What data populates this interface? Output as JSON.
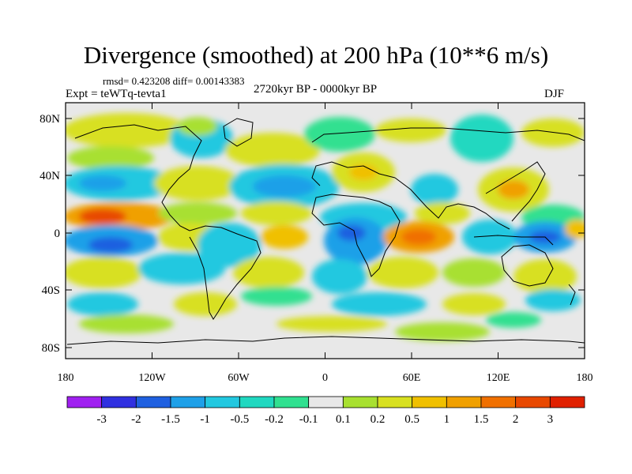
{
  "title": "Divergence (smoothed) at 200 hPa (10**6 m/s)",
  "stats": "rmsd= 0.423208  diff= 0.00143383",
  "experiment": "Expt = teWTq-tevta1",
  "period": "2720kyr BP - 0000kyr BP",
  "season": "DJF",
  "lat_labels": [
    "80N",
    "40N",
    "0",
    "40S",
    "80S"
  ],
  "lon_labels": [
    "180",
    "120W",
    "60W",
    "0",
    "60E",
    "120E",
    "180"
  ],
  "colorbar": {
    "colors": [
      "#a020f0",
      "#3030e0",
      "#1f60e0",
      "#1ea0e8",
      "#22c8e0",
      "#20d8c0",
      "#30e090",
      "#e8e8e8",
      "#a8e030",
      "#d8e020",
      "#f0c000",
      "#f0a000",
      "#f07000",
      "#e84800",
      "#e02000"
    ],
    "labels": [
      "-3",
      "-2",
      "-1.5",
      "-1",
      "-0.5",
      "-0.2",
      "-0.1",
      "0.1",
      "0.2",
      "0.5",
      "1",
      "1.5",
      "2",
      "3"
    ]
  }
}
